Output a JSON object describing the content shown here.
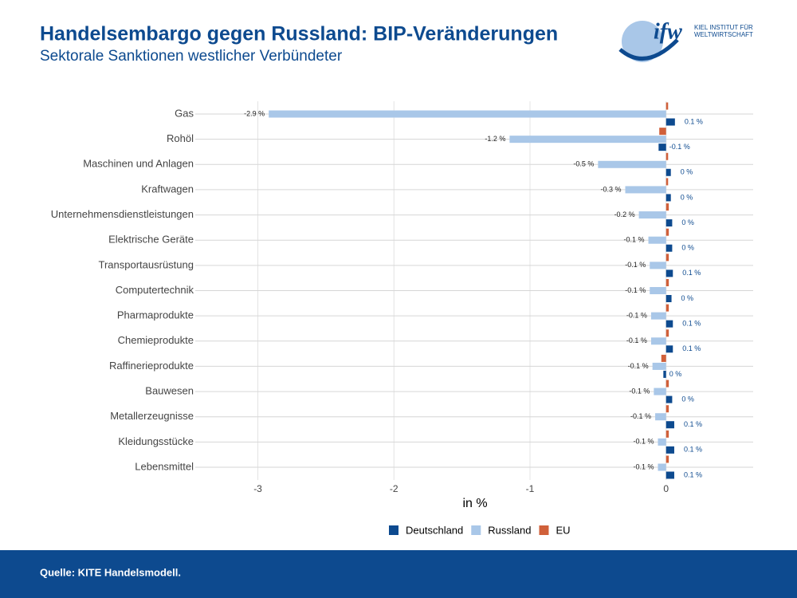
{
  "chart_data": {
    "type": "bar",
    "orientation": "horizontal",
    "title": "Handelsembargo gegen Russland: BIP-Veränderungen",
    "subtitle": "Sektorale Sanktionen westlicher Verbündeter",
    "source": "Quelle: KITE Handelsmodell.",
    "logo": {
      "mark": "ifw",
      "lines": [
        "KIEL INSTITUT FÜR",
        "WELTWIRTSCHAFT"
      ]
    },
    "x_label": "in %",
    "categories": [
      "Gas",
      "Rohöl",
      "Maschinen und Anlagen",
      "Kraftwagen",
      "Unternehmensdienstleistungen",
      "Elektrische Geräte",
      "Transportausrüstung",
      "Computertechnik",
      "Pharmaprodukte",
      "Chemieprodukte",
      "Raffinerieprodukte",
      "Bauwesen",
      "Metallerzeugnisse",
      "Kleidungsstücke",
      "Lebensmittel"
    ],
    "series": [
      {
        "name": "Deutschland",
        "color": "#0d4a8f",
        "values": [
          0.065,
          -0.055,
          0.035,
          0.035,
          0.045,
          0.045,
          0.05,
          0.04,
          0.05,
          0.05,
          -0.02,
          0.045,
          0.06,
          0.06,
          0.06
        ],
        "value_labels": [
          "0.1 %",
          "-0.1 %",
          "0 %",
          "0 %",
          "0 %",
          "0 %",
          "0.1 %",
          "0 %",
          "0.1 %",
          "0.1 %",
          "0 %",
          "0 %",
          "0.1 %",
          "0.1 %",
          "0.1 %"
        ]
      },
      {
        "name": "Russland",
        "color": "#a9c7e8",
        "values": [
          -2.92,
          -1.15,
          -0.5,
          -0.3,
          -0.2,
          -0.13,
          -0.12,
          -0.12,
          -0.11,
          -0.11,
          -0.1,
          -0.09,
          -0.08,
          -0.06,
          -0.06
        ],
        "value_labels": [
          "-2.9 %",
          "-1.2 %",
          "-0.5 %",
          "-0.3 %",
          "-0.2 %",
          "-0.1 %",
          "-0.1 %",
          "-0.1 %",
          "-0.1 %",
          "-0.1 %",
          "-0.1 %",
          "-0.1 %",
          "-0.1 %",
          "-0.1 %",
          "-0.1 %"
        ]
      },
      {
        "name": "EU",
        "color": "#d0603a",
        "values": [
          0.015,
          -0.05,
          0.015,
          0.015,
          0.02,
          0.02,
          0.02,
          0.02,
          0.02,
          0.02,
          -0.035,
          0.02,
          0.02,
          0.02,
          0.02
        ]
      }
    ],
    "xlim": [
      -3.46,
      0.64
    ],
    "xticks": [
      -3,
      -2,
      -1,
      0
    ],
    "grid": true
  }
}
